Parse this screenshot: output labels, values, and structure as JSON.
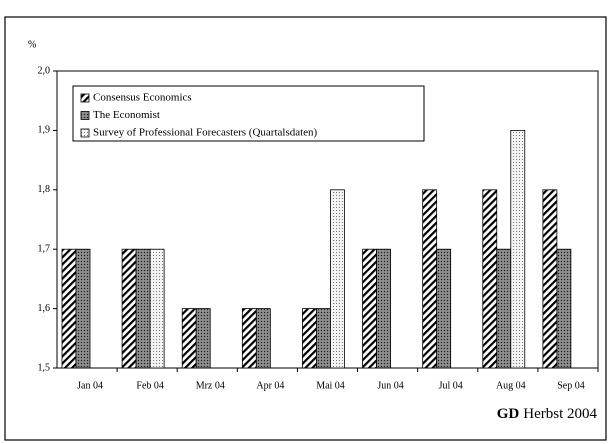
{
  "chart_data": {
    "type": "bar",
    "y_unit": "%",
    "categories": [
      "Jan 04",
      "Feb 04",
      "Mrz 04",
      "Apr 04",
      "Mai 04",
      "Jun 04",
      "Jul 04",
      "Aug 04",
      "Sep 04"
    ],
    "series": [
      {
        "name": "Consensus Economics",
        "color": "#ffffff",
        "pattern": "diagonal-hatch",
        "values": [
          1.7,
          1.7,
          1.6,
          1.6,
          1.6,
          1.7,
          1.8,
          1.8,
          1.8
        ]
      },
      {
        "name": "The Economist",
        "color": "#808080",
        "pattern": "cross-hatch",
        "values": [
          1.7,
          1.7,
          1.6,
          1.6,
          1.6,
          1.7,
          1.7,
          1.7,
          1.7
        ]
      },
      {
        "name": "Survey of Professional Forecasters (Quartalsdaten)",
        "color": "#ececec",
        "pattern": "dots",
        "values": [
          null,
          1.7,
          null,
          null,
          1.8,
          null,
          null,
          1.9,
          null
        ]
      }
    ],
    "ylim": [
      1.5,
      2.0
    ],
    "yticks": [
      {
        "value": 1.5,
        "label": "1,5"
      },
      {
        "value": 1.6,
        "label": "1,6"
      },
      {
        "value": 1.7,
        "label": "1,7"
      },
      {
        "value": 1.8,
        "label": "1,8"
      },
      {
        "value": 1.9,
        "label": "1,9"
      },
      {
        "value": 2.0,
        "label": "2,0"
      }
    ],
    "grid": false,
    "legend": "upper left",
    "source": {
      "bold": "GD",
      "text": "Herbst 2004"
    }
  }
}
